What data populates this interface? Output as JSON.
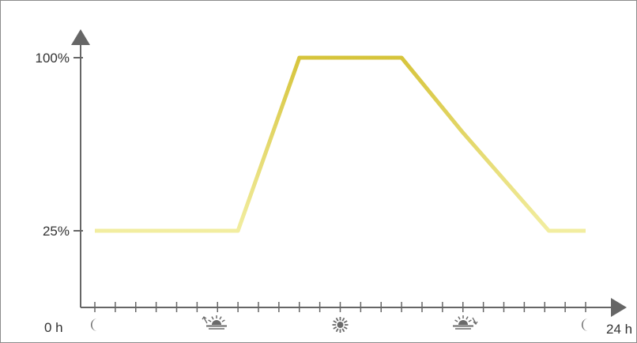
{
  "chart_data": {
    "type": "line",
    "x_range": [
      0,
      24
    ],
    "x_start_label": "0 h",
    "x_end_label": "24 h",
    "y_tick_labels": [
      "25%",
      "100%"
    ],
    "y_ticks": [
      25,
      100
    ],
    "x": [
      0,
      7,
      10,
      15,
      18,
      22.2,
      24
    ],
    "y": [
      25,
      25,
      100,
      100,
      67.5,
      25,
      25
    ],
    "x_minor_ticks": 24,
    "time_icons": [
      {
        "name": "moon-icon",
        "hour": 0
      },
      {
        "name": "sunrise-icon",
        "hour": 6
      },
      {
        "name": "sun-icon",
        "hour": 12
      },
      {
        "name": "sunset-icon",
        "hour": 18
      },
      {
        "name": "moon-icon",
        "hour": 24
      }
    ],
    "line_colors": {
      "pale": "#f3efa4",
      "strong": "#d5c236"
    },
    "axis_color": "#666666",
    "grid": false,
    "legend": "none"
  }
}
